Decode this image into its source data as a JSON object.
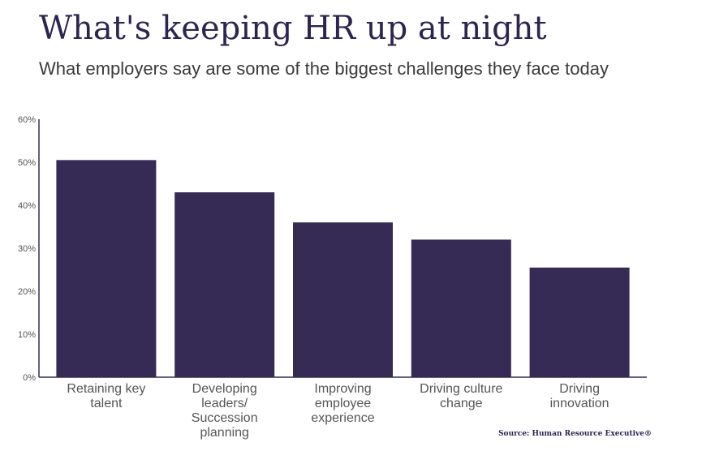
{
  "title": "What's keeping HR up at night",
  "subtitle": "What employers say are some of the biggest challenges they face today",
  "source": "Source: Human Resource Executive®",
  "colors": {
    "bar": "#362b55",
    "axis": "#362b55",
    "text": "#555555"
  },
  "chart_data": {
    "type": "bar",
    "categories": [
      [
        "Retaining key",
        "talent"
      ],
      [
        "Developing",
        "leaders/",
        "Succession",
        "planning"
      ],
      [
        "Improving",
        "employee",
        "experience"
      ],
      [
        "Driving culture",
        "change"
      ],
      [
        "Driving",
        "innovation"
      ]
    ],
    "values": [
      50.5,
      43,
      36,
      32,
      25.5
    ],
    "yticks": [
      "0%",
      "10%",
      "20%",
      "30%",
      "40%",
      "50%",
      "60%"
    ],
    "ylim": [
      0,
      60
    ],
    "grid": false,
    "legend": "none"
  }
}
